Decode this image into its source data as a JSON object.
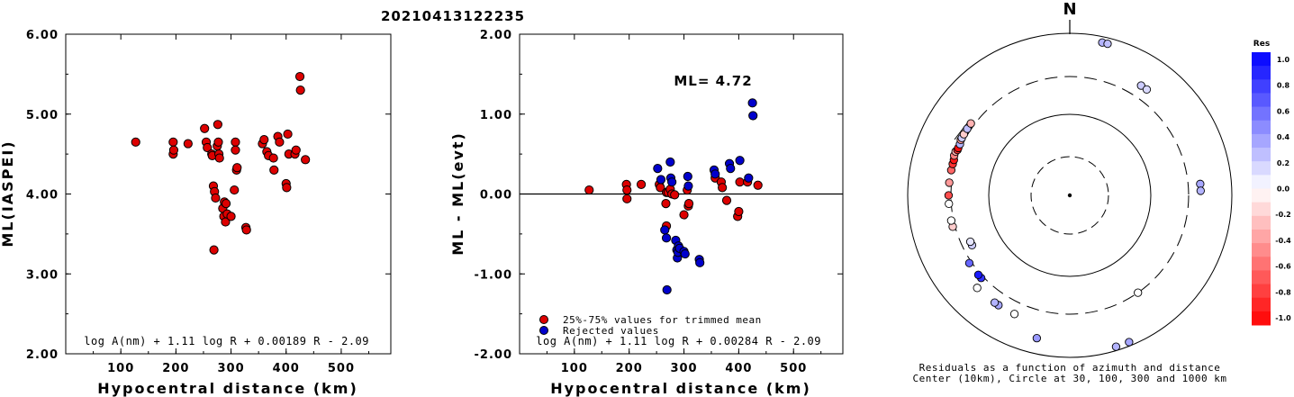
{
  "title": "20210413122235",
  "chart_data": [
    {
      "type": "scatter",
      "xlabel": "Hypocentral distance (km)",
      "ylabel": "ML(IASPEI)",
      "xlim": [
        0,
        590
      ],
      "ylim": [
        2.0,
        6.0
      ],
      "xticks": [
        "100",
        "200",
        "300",
        "400",
        "500"
      ],
      "yticks": [
        "2.00",
        "3.00",
        "4.00",
        "5.00",
        "6.00"
      ],
      "annotation": "log A(nm) + 1.11 log R + 0.00189 R - 2.09",
      "series": [
        {
          "color": "#dd0000",
          "points": [
            [
              127,
              4.65
            ],
            [
              195,
              4.65
            ],
            [
              195,
              4.5
            ],
            [
              196,
              4.55
            ],
            [
              222,
              4.63
            ],
            [
              252,
              4.82
            ],
            [
              255,
              4.65
            ],
            [
              257,
              4.58
            ],
            [
              265,
              4.5
            ],
            [
              266,
              4.48
            ],
            [
              268,
              4.1
            ],
            [
              270,
              4.03
            ],
            [
              272,
              3.95
            ],
            [
              269,
              3.3
            ],
            [
              275,
              4.6
            ],
            [
              276,
              4.87
            ],
            [
              277,
              4.65
            ],
            [
              278,
              4.5
            ],
            [
              279,
              4.45
            ],
            [
              285,
              3.82
            ],
            [
              287,
              3.72
            ],
            [
              288,
              3.9
            ],
            [
              290,
              3.65
            ],
            [
              291,
              3.88
            ],
            [
              293,
              3.75
            ],
            [
              300,
              3.72
            ],
            [
              306,
              4.05
            ],
            [
              308,
              4.65
            ],
            [
              308,
              4.55
            ],
            [
              310,
              4.3
            ],
            [
              311,
              4.33
            ],
            [
              327,
              3.58
            ],
            [
              328,
              3.55
            ],
            [
              357,
              4.63
            ],
            [
              360,
              4.68
            ],
            [
              365,
              4.53
            ],
            [
              368,
              4.48
            ],
            [
              378,
              4.3
            ],
            [
              377,
              4.45
            ],
            [
              385,
              4.72
            ],
            [
              388,
              4.65
            ],
            [
              400,
              4.13
            ],
            [
              401,
              4.08
            ],
            [
              403,
              4.75
            ],
            [
              405,
              4.5
            ],
            [
              416,
              4.5
            ],
            [
              418,
              4.55
            ],
            [
              425,
              5.47
            ],
            [
              426,
              5.3
            ],
            [
              435,
              4.43
            ]
          ]
        }
      ]
    },
    {
      "type": "scatter",
      "xlabel": "Hypocentral distance (km)",
      "ylabel": "ML - ML(evt)",
      "xlim": [
        0,
        590
      ],
      "ylim": [
        -2.0,
        2.0
      ],
      "xticks": [
        "100",
        "200",
        "300",
        "400",
        "500"
      ],
      "yticks": [
        "-2.00",
        "-1.00",
        "0.00",
        "1.00",
        "2.00"
      ],
      "annotation": "log A(nm) + 1.11 log R + 0.00284 R - 2.09",
      "ml_label": "ML= 4.72",
      "reference_line": 0.0,
      "legend": [
        "25%-75% values for trimmed mean",
        "Rejected values"
      ],
      "series": [
        {
          "name": "25%-75% values for trimmed mean",
          "color": "#dd0000",
          "points": [
            [
              127,
              0.05
            ],
            [
              195,
              0.12
            ],
            [
              196,
              0.05
            ],
            [
              196,
              -0.06
            ],
            [
              222,
              0.12
            ],
            [
              255,
              0.12
            ],
            [
              257,
              0.08
            ],
            [
              267,
              -0.12
            ],
            [
              268,
              0.02
            ],
            [
              268,
              -0.4
            ],
            [
              271,
              0.02
            ],
            [
              275,
              0.06
            ],
            [
              278,
              0.0
            ],
            [
              283,
              -0.01
            ],
            [
              300,
              -0.26
            ],
            [
              306,
              0.05
            ],
            [
              308,
              -0.15
            ],
            [
              309,
              -0.12
            ],
            [
              357,
              0.2
            ],
            [
              368,
              0.15
            ],
            [
              370,
              0.08
            ],
            [
              378,
              -0.08
            ],
            [
              398,
              -0.28
            ],
            [
              400,
              -0.22
            ],
            [
              402,
              0.15
            ],
            [
              416,
              0.15
            ],
            [
              435,
              0.11
            ]
          ]
        },
        {
          "name": "Rejected values",
          "color": "#0000cc",
          "points": [
            [
              252,
              0.32
            ],
            [
              258,
              0.18
            ],
            [
              265,
              -0.45
            ],
            [
              268,
              -0.55
            ],
            [
              269,
              -1.2
            ],
            [
              275,
              0.4
            ],
            [
              276,
              0.2
            ],
            [
              278,
              0.15
            ],
            [
              285,
              -0.58
            ],
            [
              287,
              -0.7
            ],
            [
              288,
              -0.8
            ],
            [
              289,
              -0.73
            ],
            [
              290,
              -0.65
            ],
            [
              292,
              -0.68
            ],
            [
              300,
              -0.72
            ],
            [
              302,
              -0.75
            ],
            [
              307,
              0.22
            ],
            [
              308,
              0.1
            ],
            [
              328,
              -0.82
            ],
            [
              329,
              -0.86
            ],
            [
              355,
              0.3
            ],
            [
              357,
              0.25
            ],
            [
              383,
              0.38
            ],
            [
              385,
              0.32
            ],
            [
              402,
              0.42
            ],
            [
              418,
              0.2
            ],
            [
              425,
              1.14
            ],
            [
              426,
              0.98
            ]
          ]
        }
      ]
    }
  ],
  "polar": {
    "north_label": "N",
    "caption_line1": "Residuals as a function of azimuth and distance",
    "caption_line2": "Center (10km), Circle at 30, 100, 300 and 1000 km",
    "colorbar_title": "Res",
    "colorbar_ticks": [
      "1.0",
      "0.8",
      "0.6",
      "0.4",
      "0.2",
      "0.0",
      "-0.2",
      "-0.4",
      "-0.6",
      "-0.8",
      "-1.0"
    ],
    "points": [
      {
        "az": 12,
        "dist": 850,
        "res": 0.3
      },
      {
        "az": 14,
        "dist": 850,
        "res": 0.25
      },
      {
        "az": 33,
        "dist": 420,
        "res": 0.2
      },
      {
        "az": 36,
        "dist": 420,
        "res": 0.15
      },
      {
        "az": 85,
        "dist": 420,
        "res": 0.35
      },
      {
        "az": 88,
        "dist": 420,
        "res": 0.3
      },
      {
        "az": 145,
        "dist": 300,
        "res": 0.0
      },
      {
        "az": 163,
        "dist": 900,
        "res": 0.3
      },
      {
        "az": 158,
        "dist": 900,
        "res": 0.35
      },
      {
        "az": 193,
        "dist": 650,
        "res": 0.4
      },
      {
        "az": 205,
        "dist": 420,
        "res": 0.0
      },
      {
        "az": 213,
        "dist": 420,
        "res": 0.35
      },
      {
        "az": 215,
        "dist": 420,
        "res": 0.3
      },
      {
        "az": 225,
        "dist": 420,
        "res": 0.0
      },
      {
        "az": 227,
        "dist": 320,
        "res": 0.8
      },
      {
        "az": 229,
        "dist": 320,
        "res": 0.9
      },
      {
        "az": 236,
        "dist": 320,
        "res": 0.6
      },
      {
        "az": 243,
        "dist": 230,
        "res": 0.2
      },
      {
        "az": 245,
        "dist": 230,
        "res": 0.1
      },
      {
        "az": 255,
        "dist": 320,
        "res": -0.2
      },
      {
        "az": 258,
        "dist": 320,
        "res": 0.0
      },
      {
        "az": 266,
        "dist": 320,
        "res": 0.0
      },
      {
        "az": 270,
        "dist": 320,
        "res": -0.7
      },
      {
        "az": 276,
        "dist": 320,
        "res": -0.4
      },
      {
        "az": 282,
        "dist": 320,
        "res": -0.6
      },
      {
        "az": 285,
        "dist": 320,
        "res": -0.8
      },
      {
        "az": 287,
        "dist": 320,
        "res": -0.9
      },
      {
        "az": 289,
        "dist": 330,
        "res": -0.5
      },
      {
        "az": 291,
        "dist": 330,
        "res": -0.3
      },
      {
        "az": 292,
        "dist": 320,
        "res": -0.8
      },
      {
        "az": 293,
        "dist": 320,
        "res": -0.95
      },
      {
        "az": 295,
        "dist": 320,
        "res": 0.3
      },
      {
        "az": 297,
        "dist": 330,
        "res": -0.4
      },
      {
        "az": 298,
        "dist": 330,
        "res": 0.2
      },
      {
        "az": 300,
        "dist": 330,
        "res": -0.2
      },
      {
        "az": 303,
        "dist": 330,
        "res": 0.25
      },
      {
        "az": 306,
        "dist": 330,
        "res": -0.3
      }
    ]
  }
}
